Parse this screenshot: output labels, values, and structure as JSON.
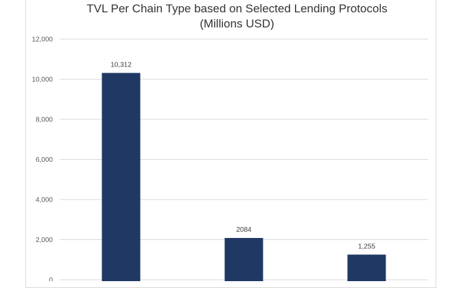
{
  "chart_data": {
    "type": "bar",
    "title_line1": "TVL Per Chain Type based on Selected Lending Protocols",
    "title_line2": "(Millions USD)",
    "xlabel": "",
    "ylabel": "",
    "categories": [
      "",
      "",
      ""
    ],
    "values": [
      10312,
      2084,
      1255
    ],
    "data_labels": [
      "10,312",
      "2084",
      "1,255"
    ],
    "ylim": [
      0,
      12000
    ],
    "yticks": [
      0,
      2000,
      4000,
      6000,
      8000,
      10000,
      12000
    ],
    "ytick_labels": [
      "0",
      "2,000",
      "4,000",
      "6,000",
      "8,000",
      "10,000",
      "12,000"
    ],
    "grid": true,
    "bar_color": "#203864",
    "gridline_color": "#d9d9d9"
  }
}
